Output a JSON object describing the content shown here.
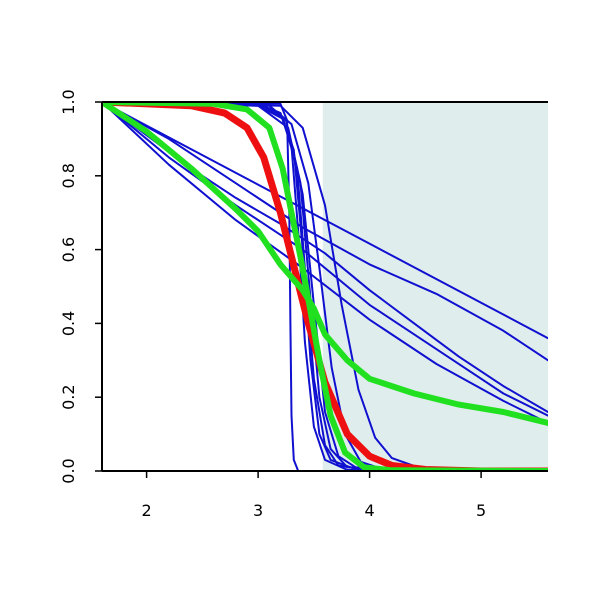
{
  "chart_data": {
    "type": "line",
    "title": "",
    "xlabel": "",
    "ylabel": "",
    "xlim": [
      1.6,
      5.6
    ],
    "ylim": [
      0,
      1
    ],
    "x_ticks": [
      "2",
      "3",
      "4",
      "5"
    ],
    "y_ticks": [
      "0.0",
      "0.2",
      "0.4",
      "0.6",
      "0.8",
      "1.0"
    ],
    "grid": false,
    "legend": "none",
    "shaded_region": {
      "x_from": 3.58,
      "x_to": 5.6,
      "y_from": 0,
      "y_to": 1,
      "color": "#e0eded"
    },
    "series": [
      {
        "color": "#1010d0",
        "points": [
          [
            1.6,
            1.0
          ],
          [
            3.2,
            0.995
          ],
          [
            3.26,
            0.95
          ],
          [
            3.28,
            0.7
          ],
          [
            3.29,
            0.4
          ],
          [
            3.3,
            0.15
          ],
          [
            3.32,
            0.03
          ],
          [
            3.36,
            0.0
          ],
          [
            5.6,
            0.0
          ]
        ]
      },
      {
        "color": "#1010d0",
        "points": [
          [
            1.6,
            1.0
          ],
          [
            3.0,
            0.995
          ],
          [
            3.2,
            0.97
          ],
          [
            3.3,
            0.88
          ],
          [
            3.36,
            0.65
          ],
          [
            3.42,
            0.35
          ],
          [
            3.5,
            0.12
          ],
          [
            3.6,
            0.03
          ],
          [
            3.8,
            0.003
          ],
          [
            5.6,
            0.0
          ]
        ]
      },
      {
        "color": "#1010d0",
        "points": [
          [
            1.6,
            1.0
          ],
          [
            3.0,
            0.995
          ],
          [
            3.2,
            0.97
          ],
          [
            3.32,
            0.87
          ],
          [
            3.4,
            0.6
          ],
          [
            3.47,
            0.3
          ],
          [
            3.55,
            0.1
          ],
          [
            3.65,
            0.03
          ],
          [
            3.9,
            0.002
          ],
          [
            5.6,
            0.0
          ]
        ]
      },
      {
        "color": "#1010d0",
        "points": [
          [
            1.6,
            1.0
          ],
          [
            3.0,
            0.995
          ],
          [
            3.22,
            0.96
          ],
          [
            3.35,
            0.82
          ],
          [
            3.42,
            0.55
          ],
          [
            3.5,
            0.25
          ],
          [
            3.6,
            0.07
          ],
          [
            3.72,
            0.015
          ],
          [
            4.0,
            0.001
          ],
          [
            5.6,
            0.0
          ]
        ]
      },
      {
        "color": "#1010d0",
        "points": [
          [
            1.6,
            1.0
          ],
          [
            3.0,
            0.99
          ],
          [
            3.25,
            0.95
          ],
          [
            3.38,
            0.78
          ],
          [
            3.46,
            0.5
          ],
          [
            3.55,
            0.2
          ],
          [
            3.65,
            0.06
          ],
          [
            3.8,
            0.01
          ],
          [
            5.6,
            0.0
          ]
        ]
      },
      {
        "color": "#1010d0",
        "points": [
          [
            1.6,
            1.0
          ],
          [
            3.0,
            0.99
          ],
          [
            3.27,
            0.93
          ],
          [
            3.4,
            0.75
          ],
          [
            3.5,
            0.45
          ],
          [
            3.6,
            0.16
          ],
          [
            3.72,
            0.04
          ],
          [
            3.9,
            0.005
          ],
          [
            5.6,
            0.0
          ]
        ]
      },
      {
        "color": "#1010d0",
        "points": [
          [
            1.6,
            1.0
          ],
          [
            3.1,
            0.99
          ],
          [
            3.3,
            0.94
          ],
          [
            3.45,
            0.78
          ],
          [
            3.55,
            0.55
          ],
          [
            3.66,
            0.28
          ],
          [
            3.78,
            0.1
          ],
          [
            3.92,
            0.025
          ],
          [
            4.15,
            0.002
          ],
          [
            5.6,
            0.0
          ]
        ]
      },
      {
        "color": "#1010d0",
        "points": [
          [
            1.6,
            1.0
          ],
          [
            3.2,
            0.99
          ],
          [
            3.4,
            0.93
          ],
          [
            3.6,
            0.72
          ],
          [
            3.75,
            0.45
          ],
          [
            3.9,
            0.22
          ],
          [
            4.05,
            0.09
          ],
          [
            4.2,
            0.035
          ],
          [
            4.45,
            0.008
          ],
          [
            4.8,
            0.0
          ],
          [
            5.6,
            0.0
          ]
        ]
      },
      {
        "color": "#1010d0",
        "points": [
          [
            1.6,
            1.0
          ],
          [
            5.6,
            0.36
          ]
        ]
      },
      {
        "color": "#1010d0",
        "points": [
          [
            1.6,
            1.0
          ],
          [
            2.2,
            0.9
          ],
          [
            2.8,
            0.78
          ],
          [
            3.4,
            0.66
          ],
          [
            4.0,
            0.56
          ],
          [
            4.6,
            0.48
          ],
          [
            5.2,
            0.38
          ],
          [
            5.6,
            0.3
          ]
        ]
      },
      {
        "color": "#1010d0",
        "points": [
          [
            1.6,
            1.0
          ],
          [
            2.0,
            0.91
          ],
          [
            2.4,
            0.82
          ],
          [
            2.8,
            0.74
          ],
          [
            3.2,
            0.67
          ],
          [
            3.6,
            0.59
          ],
          [
            4.0,
            0.49
          ],
          [
            4.4,
            0.4
          ],
          [
            4.8,
            0.31
          ],
          [
            5.2,
            0.23
          ],
          [
            5.6,
            0.16
          ]
        ]
      },
      {
        "color": "#1010d0",
        "points": [
          [
            1.6,
            1.0
          ],
          [
            2.2,
            0.85
          ],
          [
            2.8,
            0.72
          ],
          [
            3.4,
            0.6
          ],
          [
            4.0,
            0.45
          ],
          [
            4.6,
            0.33
          ],
          [
            5.2,
            0.21
          ],
          [
            5.6,
            0.15
          ]
        ]
      },
      {
        "color": "#1010d0",
        "points": [
          [
            1.6,
            1.0
          ],
          [
            2.2,
            0.83
          ],
          [
            2.8,
            0.68
          ],
          [
            3.4,
            0.55
          ],
          [
            4.0,
            0.41
          ],
          [
            4.6,
            0.29
          ],
          [
            5.2,
            0.19
          ],
          [
            5.6,
            0.13
          ]
        ]
      },
      {
        "color": "#ee1010",
        "width": 7,
        "points": [
          [
            1.6,
            1.0
          ],
          [
            2.4,
            0.99
          ],
          [
            2.7,
            0.97
          ],
          [
            2.9,
            0.93
          ],
          [
            3.05,
            0.85
          ],
          [
            3.2,
            0.7
          ],
          [
            3.35,
            0.52
          ],
          [
            3.45,
            0.4
          ],
          [
            3.6,
            0.24
          ],
          [
            3.8,
            0.1
          ],
          [
            4.0,
            0.04
          ],
          [
            4.2,
            0.015
          ],
          [
            4.5,
            0.004
          ],
          [
            5.0,
            0.0
          ],
          [
            5.6,
            0.0
          ]
        ]
      },
      {
        "color": "#20e020",
        "width": 6,
        "points": [
          [
            1.6,
            1.0
          ],
          [
            2.6,
            0.995
          ],
          [
            2.9,
            0.98
          ],
          [
            3.1,
            0.93
          ],
          [
            3.22,
            0.82
          ],
          [
            3.3,
            0.7
          ],
          [
            3.38,
            0.58
          ],
          [
            3.46,
            0.45
          ],
          [
            3.55,
            0.3
          ],
          [
            3.65,
            0.15
          ],
          [
            3.78,
            0.05
          ],
          [
            3.95,
            0.01
          ],
          [
            4.2,
            0.002
          ],
          [
            5.6,
            0.0
          ]
        ]
      },
      {
        "color": "#20e020",
        "width": 6,
        "points": [
          [
            1.6,
            1.0
          ],
          [
            2.0,
            0.92
          ],
          [
            2.4,
            0.82
          ],
          [
            2.8,
            0.71
          ],
          [
            3.0,
            0.65
          ],
          [
            3.2,
            0.56
          ],
          [
            3.4,
            0.49
          ],
          [
            3.5,
            0.44
          ],
          [
            3.6,
            0.37
          ],
          [
            3.8,
            0.3
          ],
          [
            4.0,
            0.25
          ],
          [
            4.4,
            0.21
          ],
          [
            4.8,
            0.18
          ],
          [
            5.2,
            0.16
          ],
          [
            5.6,
            0.13
          ]
        ]
      }
    ]
  }
}
